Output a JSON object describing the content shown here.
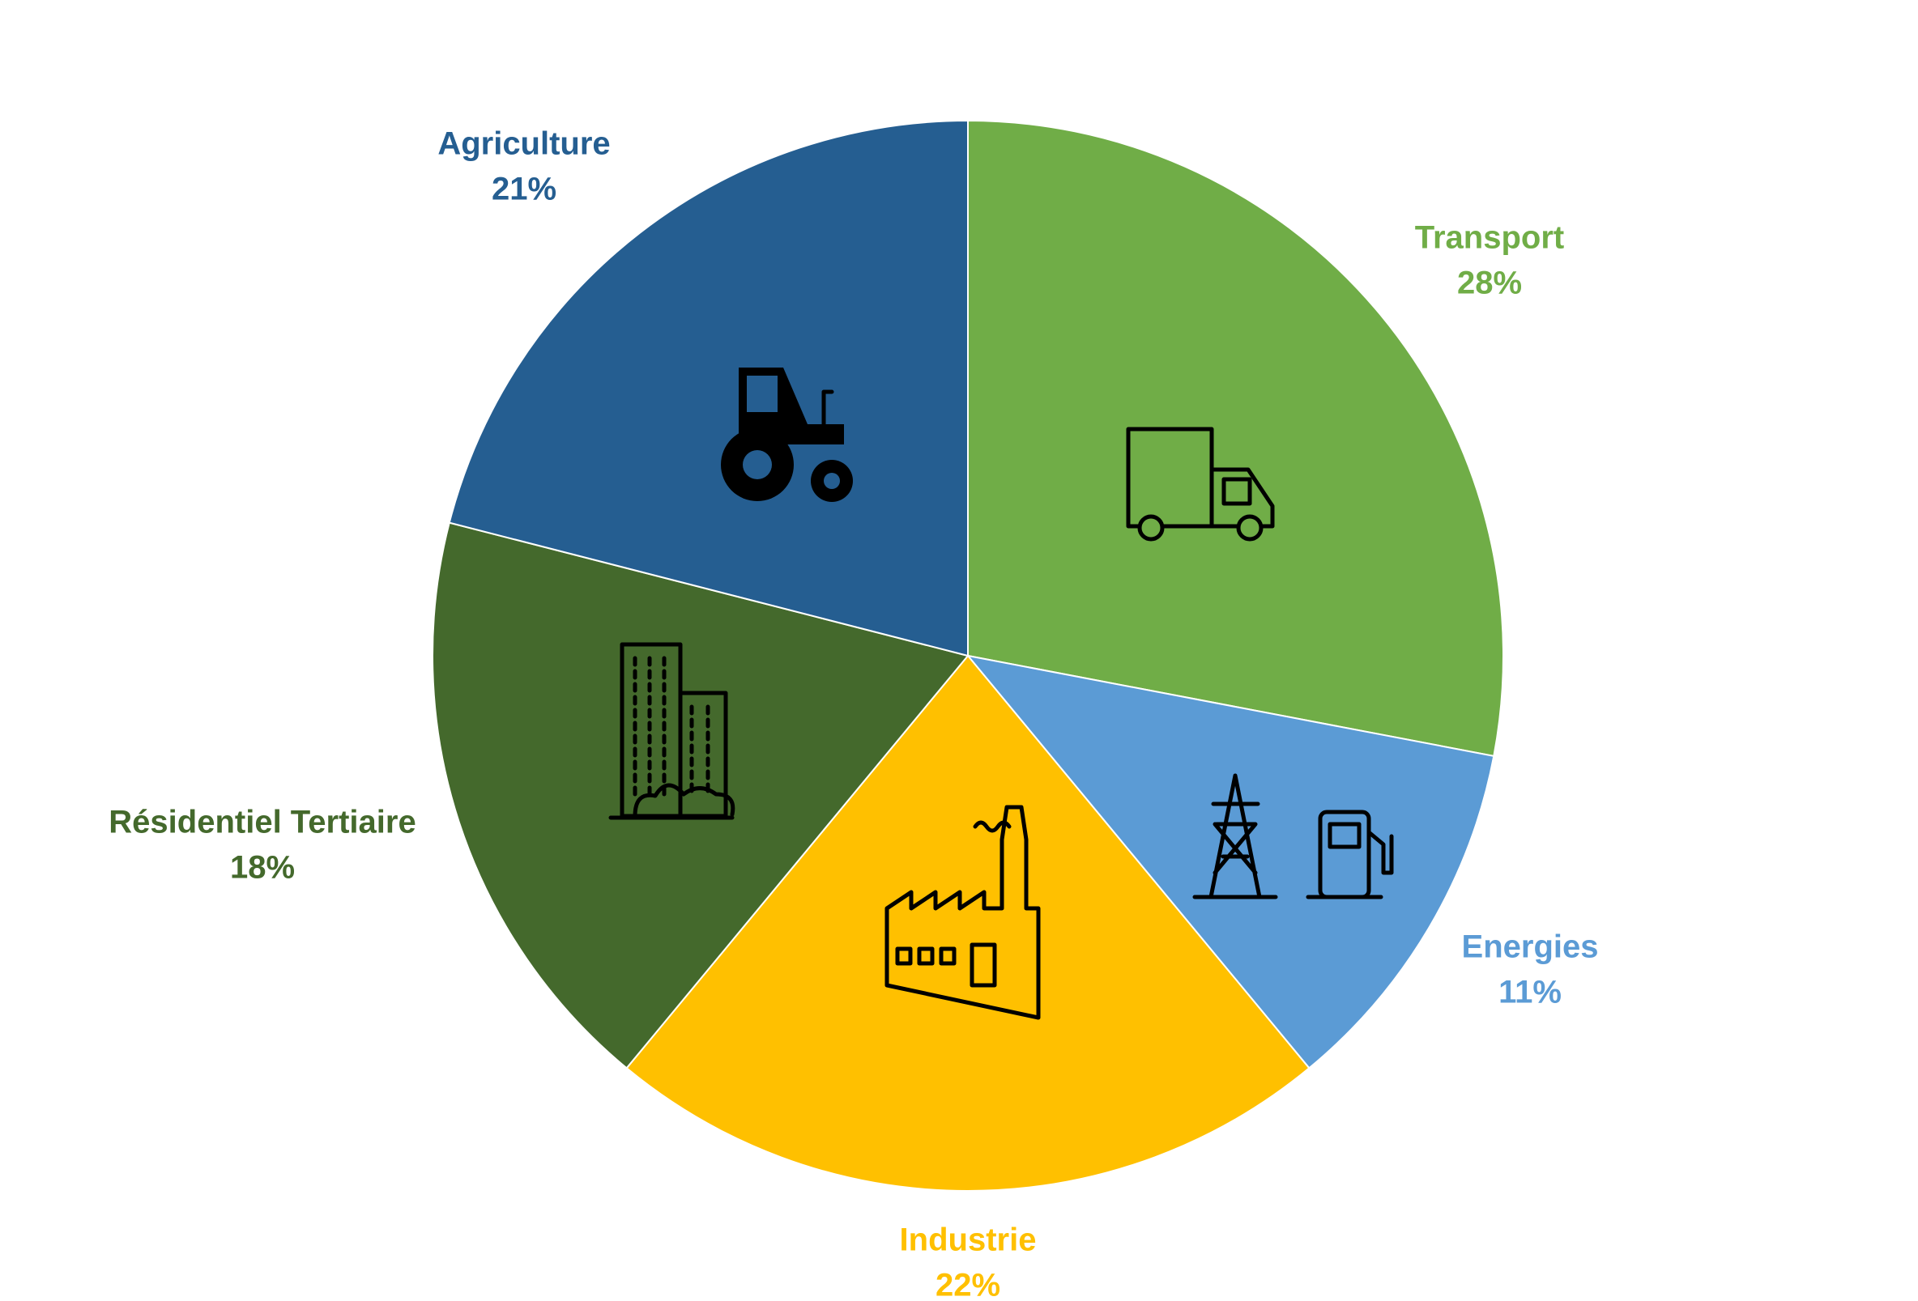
{
  "chart_data": {
    "type": "pie",
    "categories": [
      "Transport",
      "Energies",
      "Industrie",
      "Résidentiel Tertiaire",
      "Agriculture"
    ],
    "values": [
      28,
      11,
      22,
      18,
      21
    ],
    "value_labels": [
      "28%",
      "11%",
      "22%",
      "18%",
      "21%"
    ],
    "colors": [
      "#70ad47",
      "#5b9bd5",
      "#ffc000",
      "#44692c",
      "#255e91"
    ]
  }
}
